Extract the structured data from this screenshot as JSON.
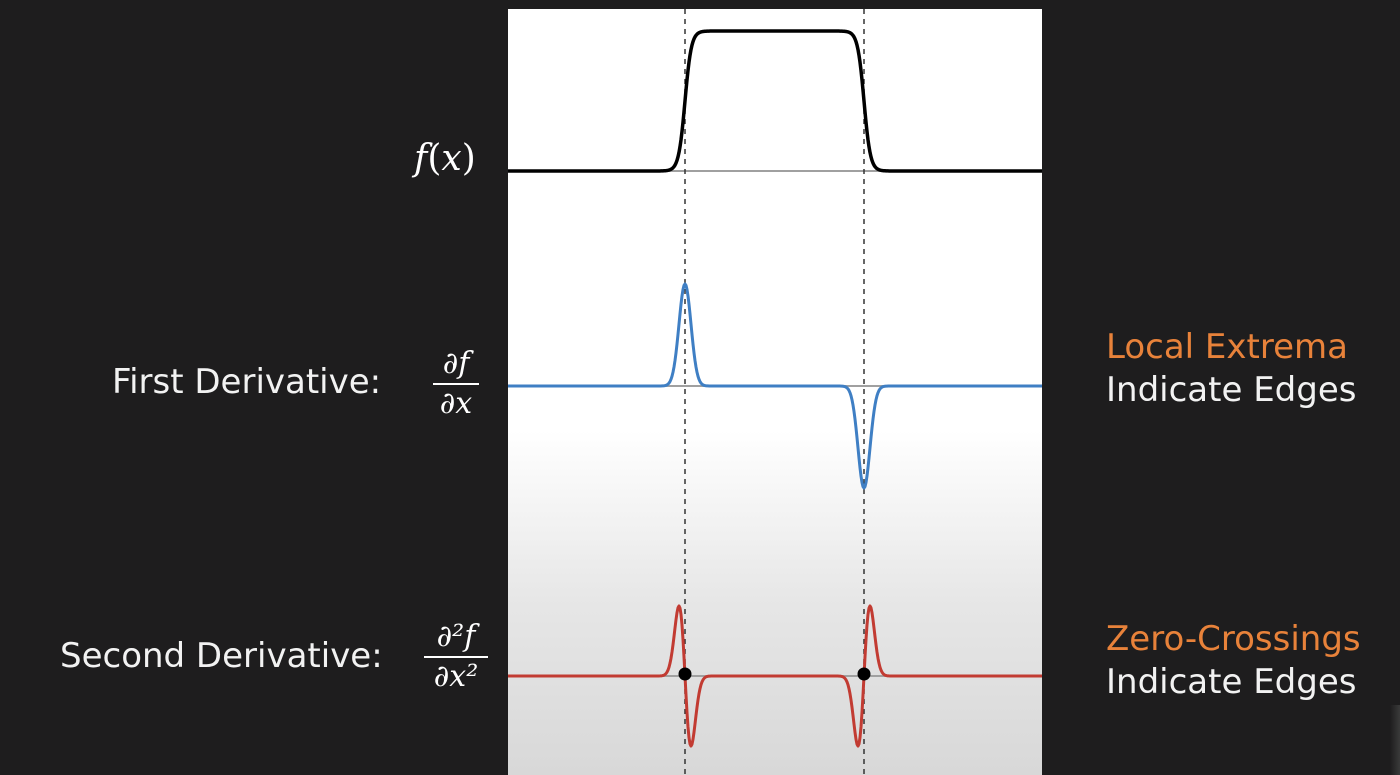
{
  "function_label": {
    "f": "f",
    "open": "(",
    "x": "x",
    "close": ")"
  },
  "first": {
    "label": "First Derivative:",
    "num": "∂f",
    "den": "∂x"
  },
  "second": {
    "label": "Second Derivative:",
    "num": "∂²f",
    "den": "∂x²"
  },
  "notes": {
    "extrema_title": "Local Extrema",
    "extrema_sub": "Indicate Edges",
    "zero_title": "Zero-Crossings",
    "zero_sub": "Indicate Edges"
  },
  "colors": {
    "function": "#000000",
    "first": "#3f7fc4",
    "second": "#c23b32",
    "accent": "#e8823a"
  }
}
